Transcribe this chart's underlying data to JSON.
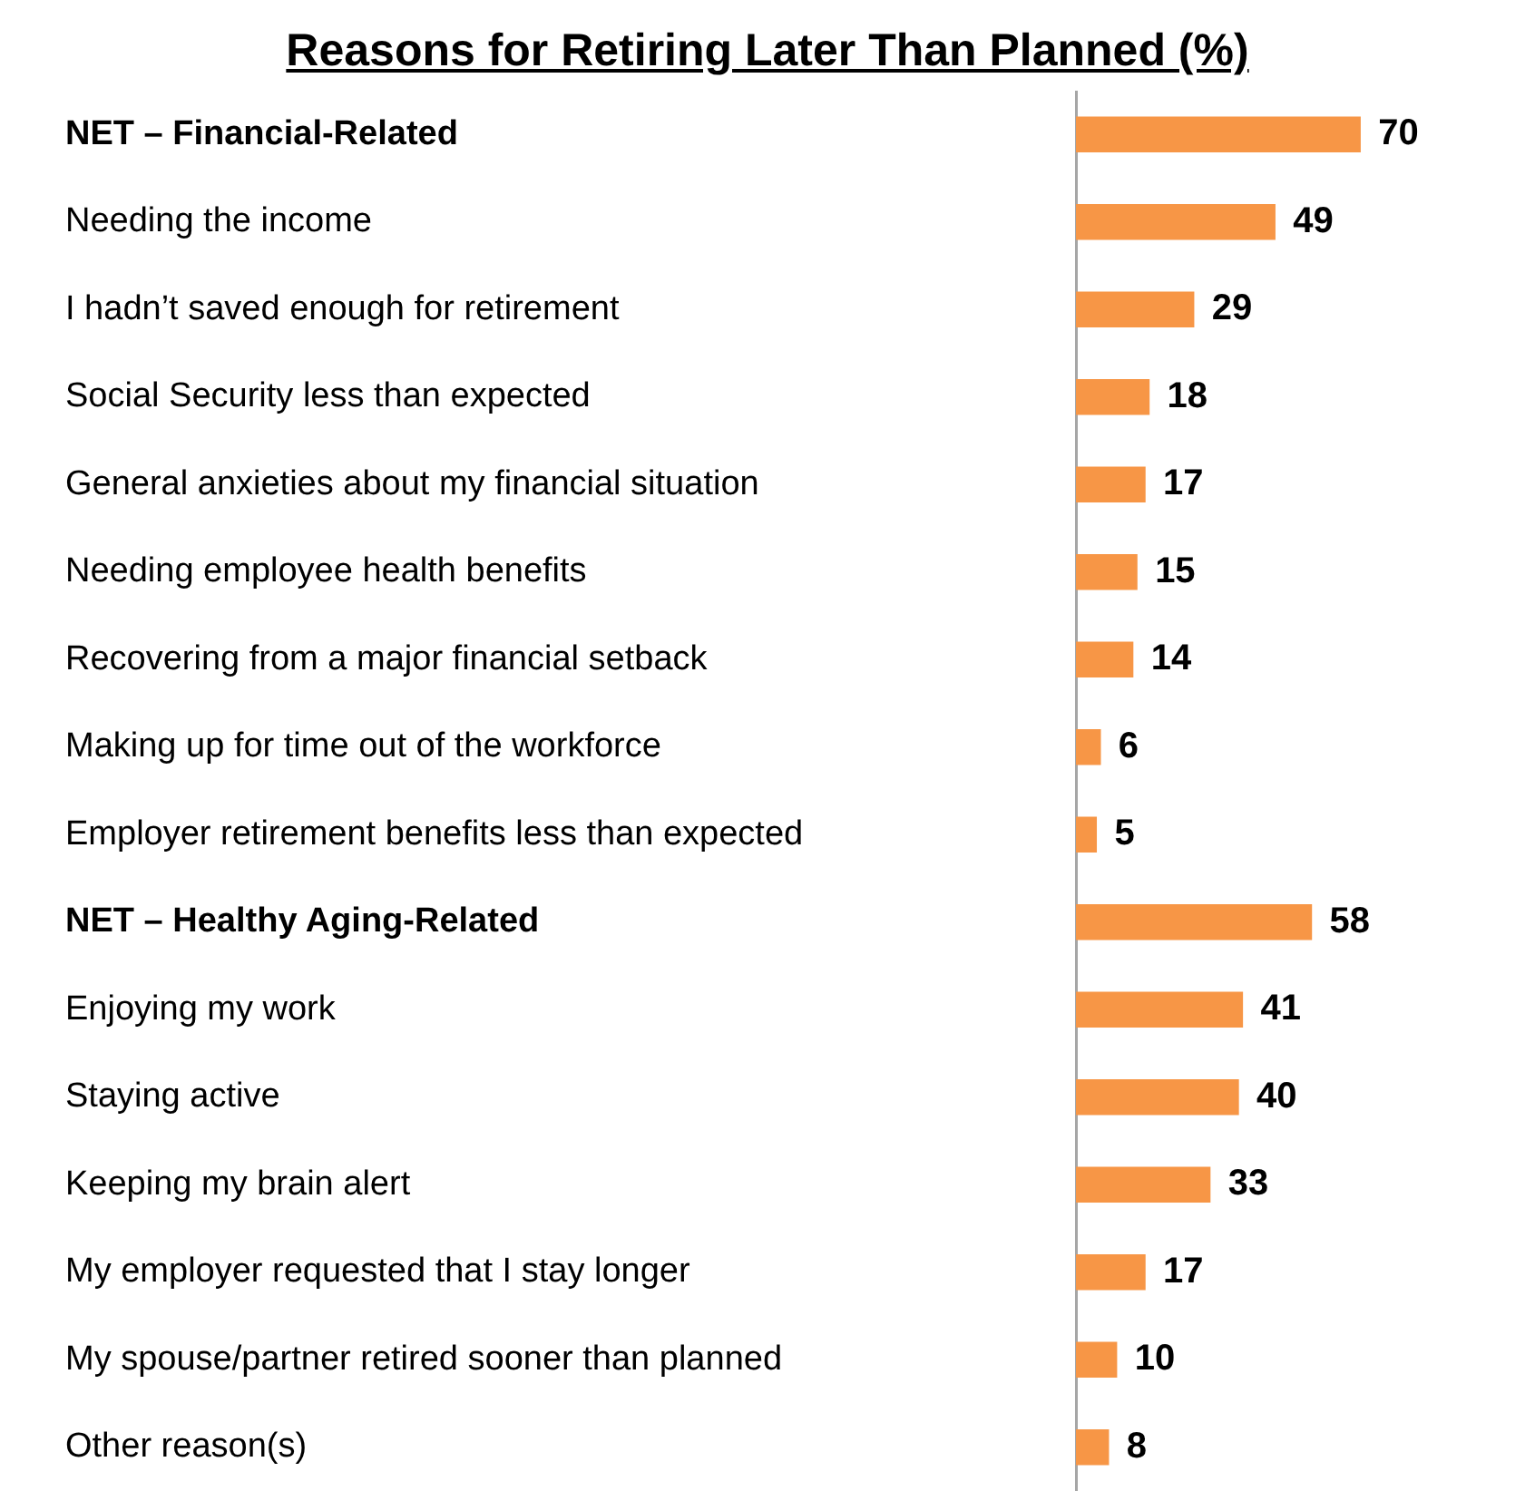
{
  "chart_data": {
    "type": "bar",
    "orientation": "horizontal",
    "title": "Reasons for Retiring Later Than Planned (%)",
    "categories": [
      "NET – Financial-Related",
      "Needing the income",
      "I hadn’t saved enough for retirement",
      "Social Security less than expected",
      "General anxieties about my financial situation",
      "Needing employee health benefits",
      "Recovering from a major financial setback",
      "Making up for time out of the workforce",
      "Employer retirement benefits less than expected",
      "NET – Healthy Aging-Related",
      "Enjoying my work",
      "Staying active",
      "Keeping my brain alert",
      "My employer requested that I stay longer",
      "My spouse/partner retired sooner than planned",
      "Other reason(s)"
    ],
    "values": [
      70,
      49,
      29,
      18,
      17,
      15,
      14,
      6,
      5,
      58,
      41,
      40,
      33,
      17,
      10,
      8
    ],
    "color": "#f79646",
    "data_labels": true,
    "grid": false,
    "legend": false
  }
}
